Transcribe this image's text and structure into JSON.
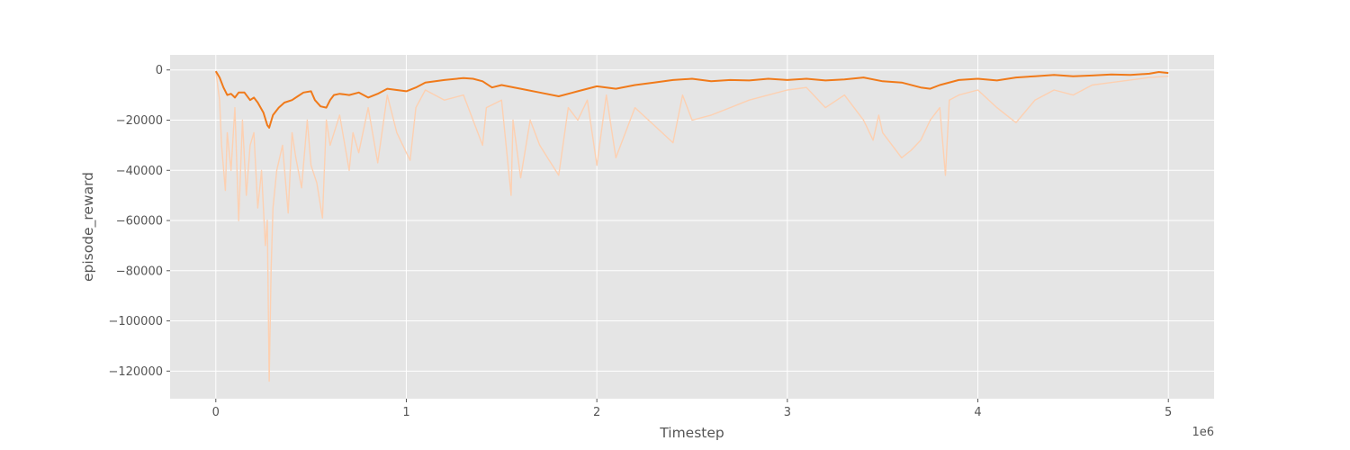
{
  "chart_data": {
    "type": "line",
    "title": "",
    "xlabel": "Timestep",
    "ylabel": "episode_reward",
    "x_offset_label": "1e6",
    "x_scale": 1000000,
    "xlim": [
      -0.24,
      5.24
    ],
    "ylim": [
      -131000,
      6000
    ],
    "x_ticks": [
      0,
      1,
      2,
      3,
      4,
      5
    ],
    "x_tick_labels": [
      "0",
      "1",
      "2",
      "3",
      "4",
      "5"
    ],
    "y_ticks": [
      0,
      -20000,
      -40000,
      -60000,
      -80000,
      -100000,
      -120000
    ],
    "y_tick_labels": [
      "0",
      "−20000",
      "−40000",
      "−60000",
      "−80000",
      "−100000",
      "−120000"
    ],
    "grid": true,
    "legend": false,
    "colors": {
      "plot_background": "#e5e5e5",
      "grid": "#ffffff",
      "raw": "#fdd0b1",
      "smoothed": "#f07a1a",
      "text": "#555555"
    },
    "series": [
      {
        "role": "raw",
        "x": [
          0,
          0.02,
          0.03,
          0.05,
          0.06,
          0.08,
          0.1,
          0.12,
          0.14,
          0.16,
          0.18,
          0.2,
          0.22,
          0.24,
          0.26,
          0.27,
          0.28,
          0.29,
          0.3,
          0.32,
          0.35,
          0.38,
          0.4,
          0.42,
          0.45,
          0.48,
          0.5,
          0.53,
          0.56,
          0.58,
          0.6,
          0.65,
          0.7,
          0.72,
          0.75,
          0.8,
          0.85,
          0.9,
          0.95,
          1.0,
          1.02,
          1.05,
          1.1,
          1.2,
          1.3,
          1.4,
          1.42,
          1.5,
          1.55,
          1.56,
          1.6,
          1.65,
          1.7,
          1.75,
          1.8,
          1.85,
          1.9,
          1.95,
          2.0,
          2.05,
          2.1,
          2.2,
          2.3,
          2.4,
          2.45,
          2.5,
          2.6,
          2.7,
          2.8,
          2.9,
          3.0,
          3.1,
          3.2,
          3.3,
          3.4,
          3.45,
          3.48,
          3.5,
          3.55,
          3.6,
          3.65,
          3.7,
          3.75,
          3.8,
          3.83,
          3.85,
          3.9,
          4.0,
          4.1,
          4.2,
          4.3,
          4.4,
          4.5,
          4.6,
          4.7,
          4.8,
          4.9,
          5.0
        ],
        "values": [
          -500,
          -12000,
          -30000,
          -48000,
          -25000,
          -40000,
          -15000,
          -60000,
          -20000,
          -50000,
          -30000,
          -25000,
          -55000,
          -40000,
          -70000,
          -60000,
          -124000,
          -80000,
          -55000,
          -40000,
          -30000,
          -57000,
          -25000,
          -35000,
          -47000,
          -20000,
          -38000,
          -45000,
          -59000,
          -20000,
          -30000,
          -18000,
          -40000,
          -25000,
          -33000,
          -15000,
          -37000,
          -10000,
          -25000,
          -33000,
          -36000,
          -15000,
          -8000,
          -12000,
          -10000,
          -30000,
          -15000,
          -12000,
          -50000,
          -20000,
          -43000,
          -20000,
          -30000,
          -36000,
          -42000,
          -15000,
          -20000,
          -12000,
          -38000,
          -10000,
          -35000,
          -15000,
          -22000,
          -29000,
          -10000,
          -20000,
          -18000,
          -15000,
          -12000,
          -10000,
          -8000,
          -7000,
          -15000,
          -10000,
          -20000,
          -28000,
          -18000,
          -25000,
          -30000,
          -35000,
          -32000,
          -28000,
          -20000,
          -15000,
          -42000,
          -12000,
          -10000,
          -8000,
          -15000,
          -21000,
          -12000,
          -8000,
          -10000,
          -6000,
          -5000,
          -4000,
          -3000,
          -2500
        ]
      },
      {
        "role": "smoothed",
        "x": [
          0,
          0.02,
          0.04,
          0.06,
          0.08,
          0.1,
          0.12,
          0.15,
          0.18,
          0.2,
          0.22,
          0.25,
          0.27,
          0.28,
          0.3,
          0.33,
          0.36,
          0.4,
          0.43,
          0.46,
          0.5,
          0.52,
          0.55,
          0.58,
          0.6,
          0.62,
          0.65,
          0.7,
          0.75,
          0.8,
          0.85,
          0.9,
          0.95,
          1.0,
          1.05,
          1.1,
          1.2,
          1.3,
          1.35,
          1.4,
          1.45,
          1.5,
          1.6,
          1.7,
          1.8,
          1.9,
          2.0,
          2.1,
          2.2,
          2.3,
          2.4,
          2.5,
          2.6,
          2.7,
          2.8,
          2.9,
          3.0,
          3.1,
          3.2,
          3.3,
          3.4,
          3.5,
          3.6,
          3.7,
          3.75,
          3.8,
          3.9,
          4.0,
          4.1,
          4.2,
          4.3,
          4.4,
          4.5,
          4.6,
          4.7,
          4.8,
          4.9,
          4.95,
          5.0
        ],
        "values": [
          -500,
          -3000,
          -7000,
          -10000,
          -9500,
          -11000,
          -9000,
          -9000,
          -12000,
          -11000,
          -13000,
          -17000,
          -22000,
          -23000,
          -18000,
          -15000,
          -13000,
          -12000,
          -10500,
          -9000,
          -8500,
          -12000,
          -14500,
          -15000,
          -12000,
          -10000,
          -9500,
          -10000,
          -9000,
          -11000,
          -9500,
          -7500,
          -8000,
          -8500,
          -7000,
          -5000,
          -4000,
          -3200,
          -3500,
          -4500,
          -7000,
          -6000,
          -7500,
          -9000,
          -10500,
          -8500,
          -6500,
          -7500,
          -6000,
          -5000,
          -4000,
          -3500,
          -4500,
          -4000,
          -4200,
          -3500,
          -4000,
          -3500,
          -4200,
          -3800,
          -3000,
          -4500,
          -5000,
          -7000,
          -7500,
          -6000,
          -4000,
          -3500,
          -4200,
          -3000,
          -2500,
          -2000,
          -2500,
          -2200,
          -1800,
          -2000,
          -1500,
          -800,
          -1200
        ]
      }
    ]
  }
}
